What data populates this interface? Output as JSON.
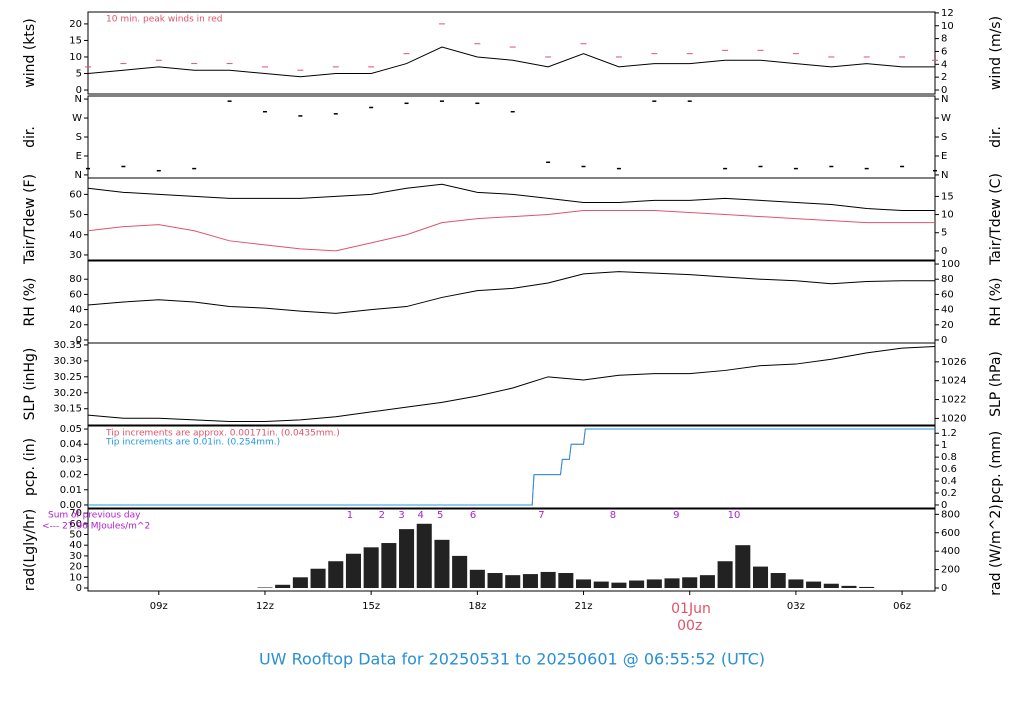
{
  "title": "UW Rooftop Data for 20250531  to  20250601 @ 06:55:52  (UTC)",
  "x_axis": {
    "xlim": [
      7,
      30.93
    ],
    "xticks": [
      {
        "value": 9,
        "label": "09z"
      },
      {
        "value": 12,
        "label": "12z"
      },
      {
        "value": 15,
        "label": "15z"
      },
      {
        "value": 18,
        "label": "18z"
      },
      {
        "value": 21,
        "label": "21z"
      },
      {
        "value": 24,
        "label": "00z"
      },
      {
        "value": 27,
        "label": "03z"
      },
      {
        "value": 30,
        "label": "06z"
      }
    ],
    "date_label": "01Jun"
  },
  "chart_data": [
    {
      "type": "line",
      "ylabel": "wind (kts)",
      "y2label": "wind (m/s)",
      "ylim": [
        -1.2,
        23.6
      ],
      "yticks": [
        0,
        5,
        10,
        15,
        20
      ],
      "y2lim": [
        -0.62,
        12.14
      ],
      "y2ticks": [
        0,
        2,
        4,
        6,
        8,
        10,
        12
      ],
      "annotations": [
        {
          "text": "10 min. peak winds in red",
          "color": "#df536b"
        }
      ],
      "x": [
        7,
        8,
        9,
        10,
        11,
        12,
        13,
        14,
        15,
        16,
        17,
        18,
        19,
        20,
        21,
        22,
        23,
        24,
        25,
        26,
        27,
        28,
        29,
        30,
        30.93
      ],
      "series": [
        {
          "color": "#000000",
          "style": "line",
          "values": [
            5,
            6,
            7,
            6,
            6,
            5,
            4,
            5,
            5,
            8,
            13,
            10,
            9,
            7,
            11,
            7,
            8,
            8,
            9,
            9,
            8,
            7,
            8,
            7,
            7
          ]
        },
        {
          "color": "#df536b",
          "style": "dash",
          "values": [
            7,
            8,
            9,
            8,
            8,
            7,
            6,
            7,
            7,
            11,
            20,
            14,
            13,
            10,
            14,
            10,
            11,
            11,
            12,
            12,
            11,
            10,
            10,
            10,
            9
          ]
        }
      ]
    },
    {
      "type": "scatter",
      "ylabel": "dir.",
      "y2label": "dir.",
      "ylim": [
        -14.6,
        374.6
      ],
      "yticks": [
        {
          "value": 0,
          "label": "N"
        },
        {
          "value": 90,
          "label": "E"
        },
        {
          "value": 180,
          "label": "S"
        },
        {
          "value": 270,
          "label": "W"
        },
        {
          "value": 360,
          "label": "N"
        }
      ],
      "x": [
        7,
        8,
        9,
        10,
        11,
        12,
        13,
        14,
        15,
        16,
        17,
        18,
        19,
        20,
        21,
        22,
        23,
        24,
        25,
        26,
        27,
        28,
        29,
        30,
        30.93
      ],
      "series": [
        {
          "color": "#000000",
          "values": [
            30,
            40,
            20,
            30,
            350,
            300,
            280,
            290,
            320,
            340,
            350,
            340,
            300,
            60,
            40,
            30,
            350,
            350,
            30,
            40,
            30,
            40,
            30,
            40,
            20
          ]
        }
      ]
    },
    {
      "type": "line",
      "ylabel": "Tair/Tdew (F)",
      "y2label": "Tair/Tdew (C)",
      "ylim": [
        27.5,
        68.1
      ],
      "yticks": [
        30,
        40,
        50,
        60
      ],
      "y2lim": [
        -2.5,
        20.06
      ],
      "y2ticks": [
        0,
        5,
        10,
        15
      ],
      "x": [
        7,
        8,
        9,
        10,
        11,
        12,
        13,
        14,
        15,
        16,
        17,
        18,
        19,
        20,
        21,
        22,
        23,
        24,
        25,
        26,
        27,
        28,
        29,
        30,
        30.93
      ],
      "series": [
        {
          "color": "#000000",
          "style": "line",
          "values": [
            63,
            61,
            60,
            59,
            58,
            58,
            58,
            59,
            60,
            63,
            65,
            61,
            60,
            58,
            56,
            56,
            57,
            57,
            58,
            57,
            56,
            55,
            53,
            52,
            52
          ]
        },
        {
          "color": "#df536b",
          "style": "line",
          "values": [
            42,
            44,
            45,
            42,
            37,
            35,
            33,
            32,
            36,
            40,
            46,
            48,
            49,
            50,
            52,
            52,
            52,
            51,
            50,
            49,
            48,
            47,
            46,
            46,
            46
          ]
        }
      ]
    },
    {
      "type": "line",
      "ylabel": "RH (%)",
      "y2label": "RH (%)",
      "ylim": [
        -4,
        104
      ],
      "yticks": [
        0,
        20,
        40,
        60,
        80
      ],
      "y2lim": [
        -4,
        104
      ],
      "y2ticks": [
        0,
        20,
        40,
        60,
        80,
        100
      ],
      "x": [
        7,
        8,
        9,
        10,
        11,
        12,
        13,
        14,
        15,
        16,
        17,
        18,
        19,
        20,
        21,
        22,
        23,
        24,
        25,
        26,
        27,
        28,
        29,
        30,
        30.93
      ],
      "series": [
        {
          "color": "#000000",
          "style": "line",
          "values": [
            46,
            50,
            53,
            50,
            44,
            42,
            38,
            35,
            40,
            44,
            56,
            65,
            68,
            75,
            87,
            90,
            88,
            86,
            83,
            80,
            78,
            74,
            77,
            78,
            78
          ]
        }
      ]
    },
    {
      "type": "line",
      "ylabel": "SLP (inHg)",
      "y2label": "SLP (hPa)",
      "ylim": [
        30.099,
        30.356
      ],
      "yticks": [
        {
          "value": 30.15,
          "label": "30.15"
        },
        {
          "value": 30.2,
          "label": "30.20"
        },
        {
          "value": 30.25,
          "label": "30.25"
        },
        {
          "value": 30.3,
          "label": "30.30"
        },
        {
          "value": 30.35,
          "label": "30.35"
        }
      ],
      "y2lim": [
        1019.3,
        1028.0
      ],
      "y2ticks": [
        1020,
        1022,
        1024,
        1026
      ],
      "x": [
        7,
        8,
        9,
        10,
        11,
        12,
        13,
        14,
        15,
        16,
        17,
        18,
        19,
        20,
        21,
        22,
        23,
        24,
        25,
        26,
        27,
        28,
        29,
        30,
        30.93
      ],
      "series": [
        {
          "color": "#000000",
          "style": "line",
          "values": [
            30.13,
            30.12,
            30.12,
            30.115,
            30.11,
            30.11,
            30.115,
            30.125,
            30.14,
            30.155,
            30.17,
            30.19,
            30.215,
            30.25,
            30.24,
            30.255,
            30.26,
            30.26,
            30.27,
            30.285,
            30.29,
            30.305,
            30.325,
            30.34,
            30.345
          ]
        }
      ]
    },
    {
      "type": "line",
      "ylabel": "pcp. (in)",
      "y2label": "pcp. (mm)",
      "ylim": [
        -0.002,
        0.052
      ],
      "yticks": [
        {
          "value": 0,
          "label": "0.00"
        },
        0.01,
        0.02,
        0.03,
        0.04,
        0.05
      ],
      "y2lim": [
        -0.051,
        1.321
      ],
      "y2ticks": [
        0,
        0.2,
        0.4,
        0.6,
        0.8,
        1,
        1.2
      ],
      "annotations": [
        {
          "text": "Tip increments are approx. 0.00171in. (0.0435mm.)",
          "color": "#df536b"
        },
        {
          "text": "Tip increments are 0.01in. (0.254mm.)",
          "color": "#2297e6"
        }
      ],
      "x": [
        7,
        19.55,
        19.6,
        20.35,
        20.4,
        20.6,
        20.65,
        21.0,
        21.05,
        30.93
      ],
      "series": [
        {
          "color": "#df536b",
          "style": "line",
          "values": [
            0,
            0,
            0.02,
            0.02,
            0.03,
            0.03,
            0.04,
            0.04,
            0.05,
            0.05
          ]
        },
        {
          "color": "#2297e6",
          "style": "line",
          "values": [
            0,
            0,
            0.02,
            0.02,
            0.03,
            0.03,
            0.04,
            0.04,
            0.05,
            0.05
          ]
        }
      ]
    },
    {
      "type": "bar",
      "ylabel": "rad(Lgly/hr)",
      "y2label": "rad (W/m^2)",
      "ylim": [
        -2.8,
        73.8
      ],
      "yticks": [
        0,
        10,
        20,
        30,
        40,
        50,
        60,
        70
      ],
      "y2lim": [
        -32.6,
        858
      ],
      "y2ticks": [
        0,
        200,
        400,
        600,
        800
      ],
      "annotations": [
        {
          "text": "Sum of previous day",
          "color": "#b020d0"
        },
        {
          "text": "<--- 27.96 MJoules/m^2",
          "color": "#b020d0"
        }
      ],
      "markers": {
        "x": [
          14.4,
          15.3,
          15.86,
          16.4,
          16.95,
          17.88,
          19.81,
          21.83,
          23.62,
          25.25
        ],
        "labels": [
          1,
          2,
          3,
          4,
          5,
          6,
          7,
          8,
          9,
          10
        ],
        "color": "#b020d0"
      },
      "x": [
        12,
        12.5,
        13,
        13.5,
        14,
        14.5,
        15,
        15.5,
        16,
        16.5,
        17,
        17.5,
        18,
        18.5,
        19,
        19.5,
        20,
        20.5,
        21,
        21.5,
        22,
        22.5,
        23,
        23.5,
        24,
        24.5,
        25,
        25.5,
        26,
        26.5,
        27,
        27.5,
        28,
        28.5,
        29
      ],
      "series": [
        {
          "color": "#222222",
          "values": [
            0.5,
            3,
            10,
            18,
            25,
            32,
            38,
            42,
            55,
            60,
            45,
            30,
            17,
            14,
            12,
            13,
            15,
            14,
            8,
            6,
            5,
            7,
            8,
            9,
            10,
            12,
            25,
            40,
            20,
            14,
            8,
            6,
            4,
            2,
            1
          ]
        }
      ]
    }
  ]
}
